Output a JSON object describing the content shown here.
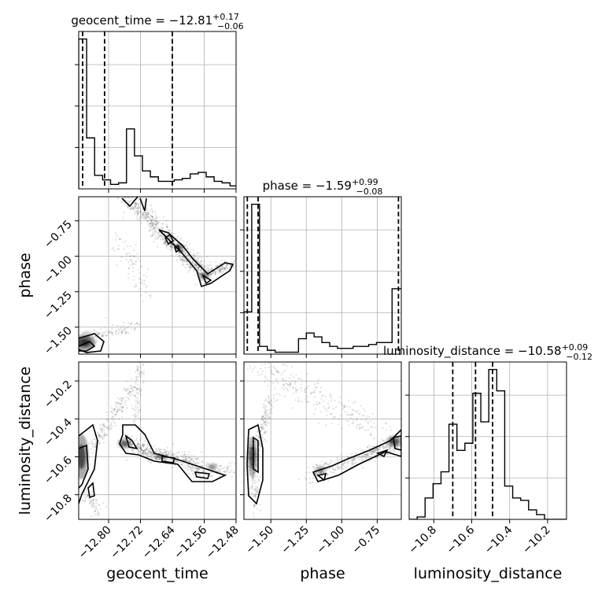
{
  "chart_data": {
    "type": "corner",
    "parameters": [
      "geocent_time",
      "phase",
      "luminosity_distance"
    ],
    "titles": [
      {
        "text": "geocent_time = −12.81",
        "sup": "+0.17",
        "sub": "−0.06"
      },
      {
        "text": "phase = −1.59",
        "sup": "+0.99",
        "sub": "−0.08"
      },
      {
        "text": "luminosity_distance = −10.58",
        "sup": "+0.09",
        "sub": "−0.12"
      }
    ],
    "axes": {
      "geocent_time": {
        "range": [
          -12.875,
          -12.48
        ],
        "ticks": [
          -12.8,
          -12.72,
          -12.64,
          -12.56,
          -12.48
        ],
        "tick_labels": [
          "−12.80",
          "−12.72",
          "−12.64",
          "−12.56",
          "−12.48"
        ]
      },
      "phase": {
        "range": [
          -1.69,
          -0.58
        ],
        "ticks": [
          -1.5,
          -1.25,
          -1.0,
          -0.75
        ],
        "tick_labels": [
          "−1.50",
          "−1.25",
          "−1.00",
          "−0.75"
        ]
      },
      "luminosity_distance": {
        "range": [
          -10.93,
          -10.1
        ],
        "ticks": [
          -10.8,
          -10.6,
          -10.4,
          -10.2
        ],
        "tick_labels": [
          "−10.8",
          "−10.6",
          "−10.4",
          "−10.2"
        ]
      }
    },
    "quantiles": {
      "geocent_time": [
        -12.865,
        -12.81,
        -12.64
      ],
      "phase": [
        -1.666,
        -1.59,
        -0.6
      ],
      "luminosity_distance": [
        -10.7,
        -10.58,
        -10.49
      ]
    },
    "histograms": {
      "geocent_time": {
        "bins": [
          -12.875,
          -12.855,
          -12.835,
          -12.815,
          -12.795,
          -12.775,
          -12.755,
          -12.735,
          -12.715,
          -12.695,
          -12.675,
          -12.655,
          -12.635,
          -12.615,
          -12.595,
          -12.575,
          -12.555,
          -12.535,
          -12.515,
          -12.495,
          -12.48
        ],
        "counts": [
          100,
          34,
          9,
          6,
          3,
          4,
          40,
          22,
          12,
          8,
          5,
          5,
          6,
          7,
          10,
          11,
          8,
          5,
          4,
          2
        ]
      },
      "phase": {
        "bins": [
          -1.69,
          -1.635,
          -1.58,
          -1.525,
          -1.47,
          -1.415,
          -1.36,
          -1.305,
          -1.25,
          -1.195,
          -1.14,
          -1.085,
          -1.03,
          -0.975,
          -0.92,
          -0.865,
          -0.81,
          -0.755,
          -0.7,
          -0.645,
          -0.58
        ],
        "counts": [
          22,
          78,
          4,
          2,
          1,
          1,
          1,
          8,
          11,
          9,
          6,
          4,
          3,
          3,
          4,
          4,
          5,
          6,
          6,
          34
        ]
      },
      "luminosity_distance": {
        "bins": [
          -10.93,
          -10.888,
          -10.846,
          -10.804,
          -10.762,
          -10.72,
          -10.678,
          -10.636,
          -10.594,
          -10.552,
          -10.51,
          -10.468,
          -10.426,
          -10.384,
          -10.342,
          -10.3,
          -10.258,
          -10.216,
          -10.174,
          -10.132,
          -10.1
        ],
        "counts": [
          0,
          1,
          9,
          15,
          20,
          40,
          29,
          32,
          53,
          41,
          63,
          54,
          14,
          9,
          8,
          4,
          2,
          0,
          0,
          0
        ]
      }
    },
    "grid": true
  }
}
